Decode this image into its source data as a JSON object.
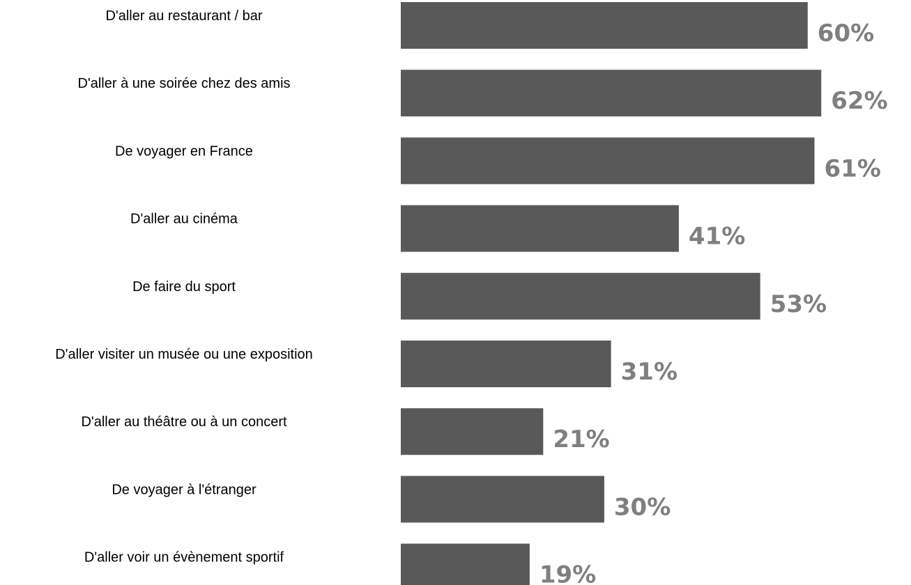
{
  "chart_data": {
    "type": "bar",
    "orientation": "horizontal",
    "categories": [
      "D'aller au restaurant / bar",
      "D'aller à une soirée chez des amis",
      "De voyager en France",
      "D'aller au cinéma",
      "De faire du sport",
      "D'aller visiter un musée ou une exposition",
      "D'aller au théâtre ou à un concert",
      "De voyager à l'étranger",
      "D'aller voir un évènement sportif"
    ],
    "values": [
      60,
      62,
      61,
      41,
      53,
      31,
      21,
      30,
      19
    ],
    "value_labels": [
      "60%",
      "62%",
      "61%",
      "41%",
      "53%",
      "31%",
      "21%",
      "30%",
      "19%"
    ],
    "title": "",
    "xlabel": "",
    "ylabel": "",
    "grid": false,
    "legend": "none",
    "bar_color": "#595959",
    "label_color": "#7f7f7f"
  }
}
